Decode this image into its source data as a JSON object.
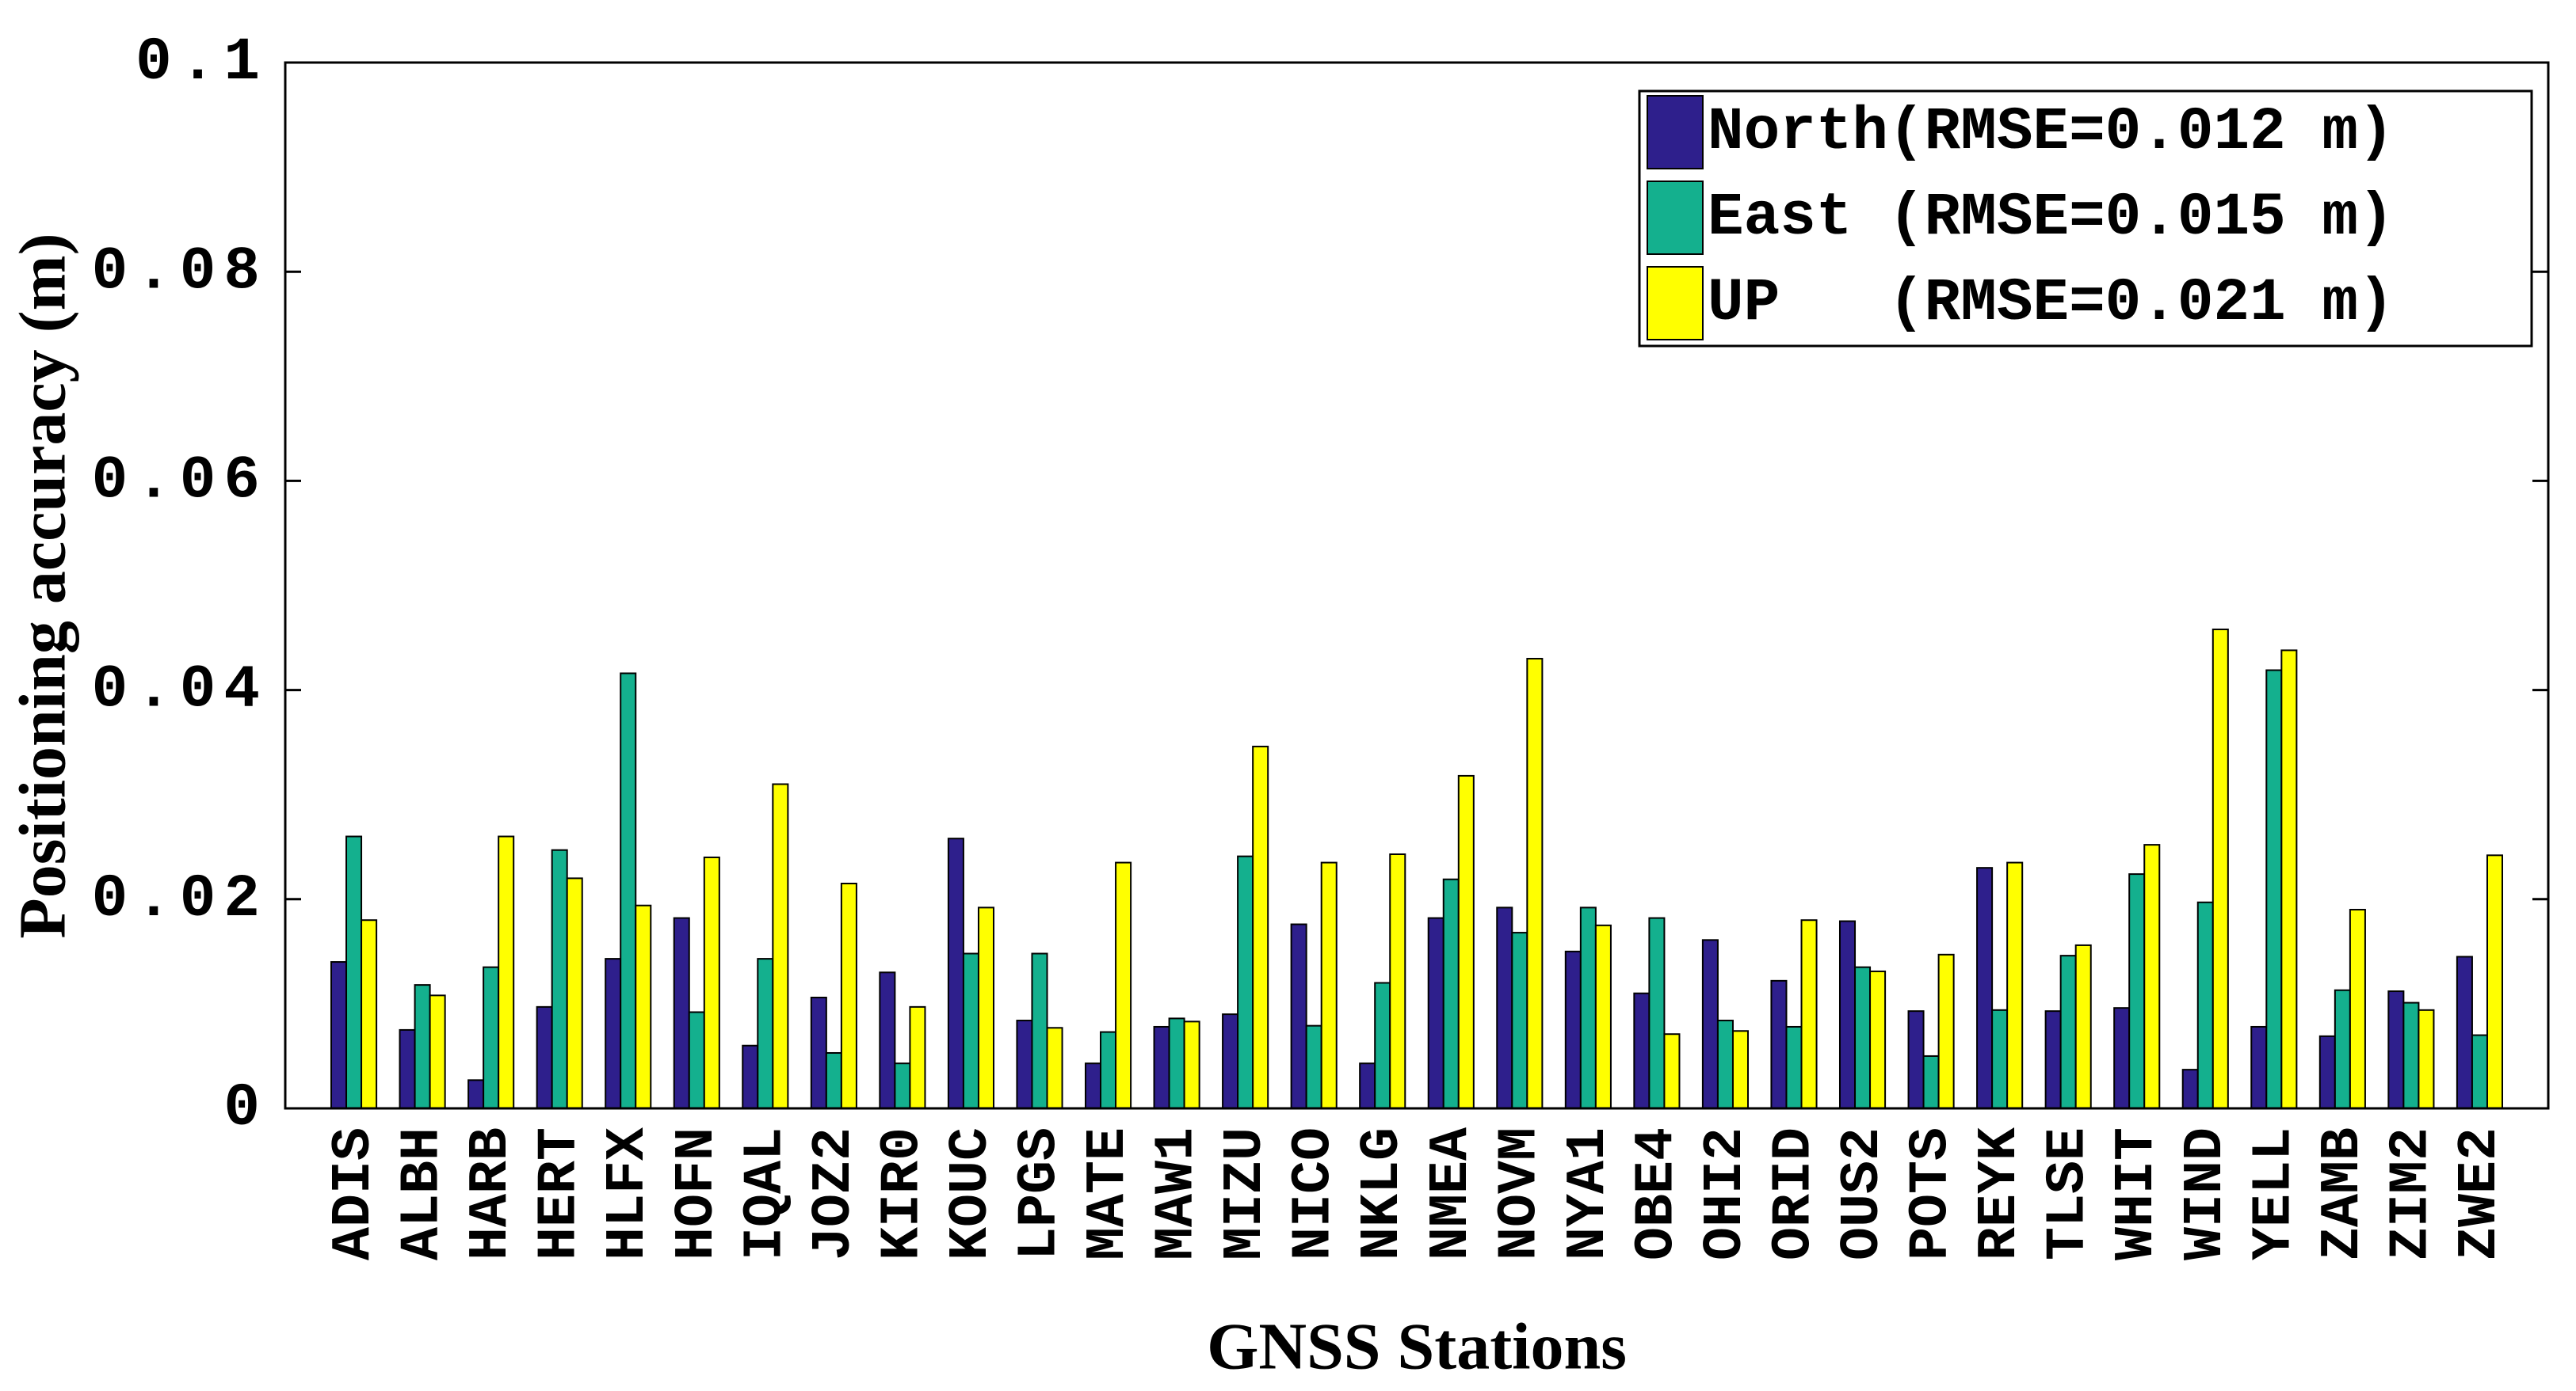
{
  "chart_data": {
    "type": "bar",
    "x_label": "GNSS Stations",
    "y_label": "Positioning accuracy (m)",
    "categories": [
      "ADIS",
      "ALBH",
      "HARB",
      "HERT",
      "HLFX",
      "HOFN",
      "IQAL",
      "JOZ2",
      "KIR0",
      "KOUC",
      "LPGS",
      "MATE",
      "MAW1",
      "MIZU",
      "NICO",
      "NKLG",
      "NMEA",
      "NOVM",
      "NYA1",
      "OBE4",
      "OHI2",
      "ORID",
      "OUS2",
      "POTS",
      "REYK",
      "TLSE",
      "WHIT",
      "WIND",
      "YELL",
      "ZAMB",
      "ZIM2",
      "ZWE2"
    ],
    "series": [
      {
        "name": "North(RMSE=0.012 m)",
        "color": "#2e1f8c",
        "values": [
          0.014,
          0.0075,
          0.0027,
          0.0097,
          0.0143,
          0.0182,
          0.006,
          0.0106,
          0.013,
          0.0258,
          0.0084,
          0.0043,
          0.0078,
          0.009,
          0.0176,
          0.0043,
          0.0182,
          0.0192,
          0.015,
          0.011,
          0.0161,
          0.0122,
          0.0179,
          0.0093,
          0.023,
          0.0093,
          0.0096,
          0.0037,
          0.0078,
          0.0069,
          0.0112,
          0.0145
        ]
      },
      {
        "name": "East (RMSE=0.015 m)",
        "color": "#14b08e",
        "values": [
          0.026,
          0.0118,
          0.0135,
          0.0247,
          0.0416,
          0.0092,
          0.0143,
          0.0053,
          0.0043,
          0.0148,
          0.0148,
          0.0073,
          0.0086,
          0.0241,
          0.0079,
          0.012,
          0.0219,
          0.0168,
          0.0192,
          0.0182,
          0.0084,
          0.0078,
          0.0135,
          0.005,
          0.0094,
          0.0146,
          0.0224,
          0.0197,
          0.0419,
          0.0113,
          0.0101,
          0.007
        ]
      },
      {
        "name": "UP   (RMSE=0.021 m)",
        "color": "#ffff00",
        "values": [
          0.018,
          0.0108,
          0.026,
          0.022,
          0.0194,
          0.024,
          0.031,
          0.0215,
          0.0097,
          0.0192,
          0.0077,
          0.0235,
          0.0083,
          0.0346,
          0.0235,
          0.0243,
          0.0318,
          0.043,
          0.0175,
          0.0071,
          0.0074,
          0.018,
          0.0131,
          0.0147,
          0.0235,
          0.0156,
          0.0252,
          0.0458,
          0.0438,
          0.019,
          0.0094,
          0.0242
        ]
      }
    ],
    "ylim": [
      0,
      0.1
    ],
    "yticks": [
      0,
      0.02,
      0.04,
      0.06,
      0.08,
      0.1
    ],
    "grid": false,
    "legend": "top-right"
  }
}
